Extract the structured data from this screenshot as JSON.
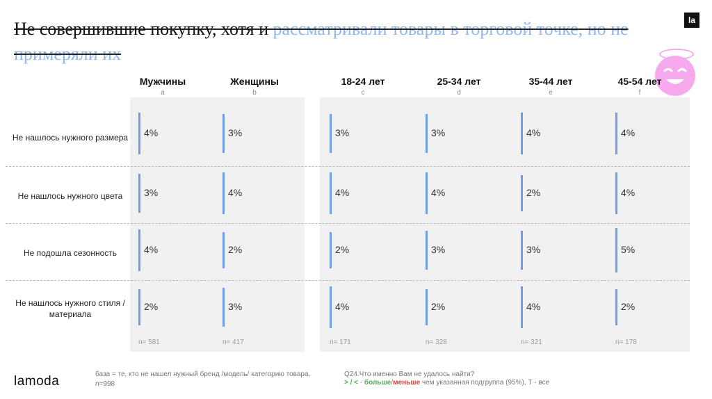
{
  "title": {
    "part1": "Не совершившие покупку, хотя и ",
    "part2": "рассматривали товары в торговой точке, но не примеряли их"
  },
  "brand_badge": "la",
  "columns": [
    {
      "label": "Мужчины",
      "letter": "a",
      "n": "n= 581"
    },
    {
      "label": "Женщины",
      "letter": "b",
      "n": "n= 417"
    },
    {
      "label": "18-24 лет",
      "letter": "c",
      "n": "n= 171"
    },
    {
      "label": "25-34 лет",
      "letter": "d",
      "n": "n= 328"
    },
    {
      "label": "35-44 лет",
      "letter": "e",
      "n": "n= 321"
    },
    {
      "label": "45-54 лет",
      "letter": "f",
      "n": "n= 178"
    }
  ],
  "rows": [
    {
      "label": "Не нашлось нужного размера",
      "values": [
        "4%",
        "3%",
        "3%",
        "3%",
        "4%",
        "4%"
      ],
      "levels": [
        4,
        3,
        3,
        3,
        4,
        4
      ]
    },
    {
      "label": "Не нашлось нужного цвета",
      "values": [
        "3%",
        "4%",
        "4%",
        "4%",
        "2%",
        "4%"
      ],
      "levels": [
        3,
        4,
        4,
        4,
        2,
        4
      ]
    },
    {
      "label": "Не подошла сезонность",
      "values": [
        "4%",
        "2%",
        "2%",
        "3%",
        "3%",
        "5%"
      ],
      "levels": [
        4,
        2,
        2,
        3,
        3,
        5
      ]
    },
    {
      "label": "Не нашлось нужного стиля / материала",
      "values": [
        "2%",
        "3%",
        "4%",
        "2%",
        "4%",
        "2%"
      ],
      "levels": [
        2,
        3,
        4,
        2,
        4,
        2
      ]
    }
  ],
  "footer": {
    "brand": "lamoda",
    "base_note": "база = те, кто не нашел нужный бренд /модель/ категорию товара, n=998",
    "question": "Q24.Что именно Вам не удалось найти?",
    "legend_symbols": "> / <",
    "legend_dash": " - ",
    "legend_more": "больше",
    "legend_slash": "/",
    "legend_less": "меньше",
    "legend_rest": " чем указанная подгруппа (95%), Т - все"
  },
  "colors": {
    "accent_bar": "#6e9ee8",
    "title_highlight": "#8fb6ef",
    "mascot": "#f6a9ec",
    "more": "#4caf50",
    "less": "#e53935"
  }
}
